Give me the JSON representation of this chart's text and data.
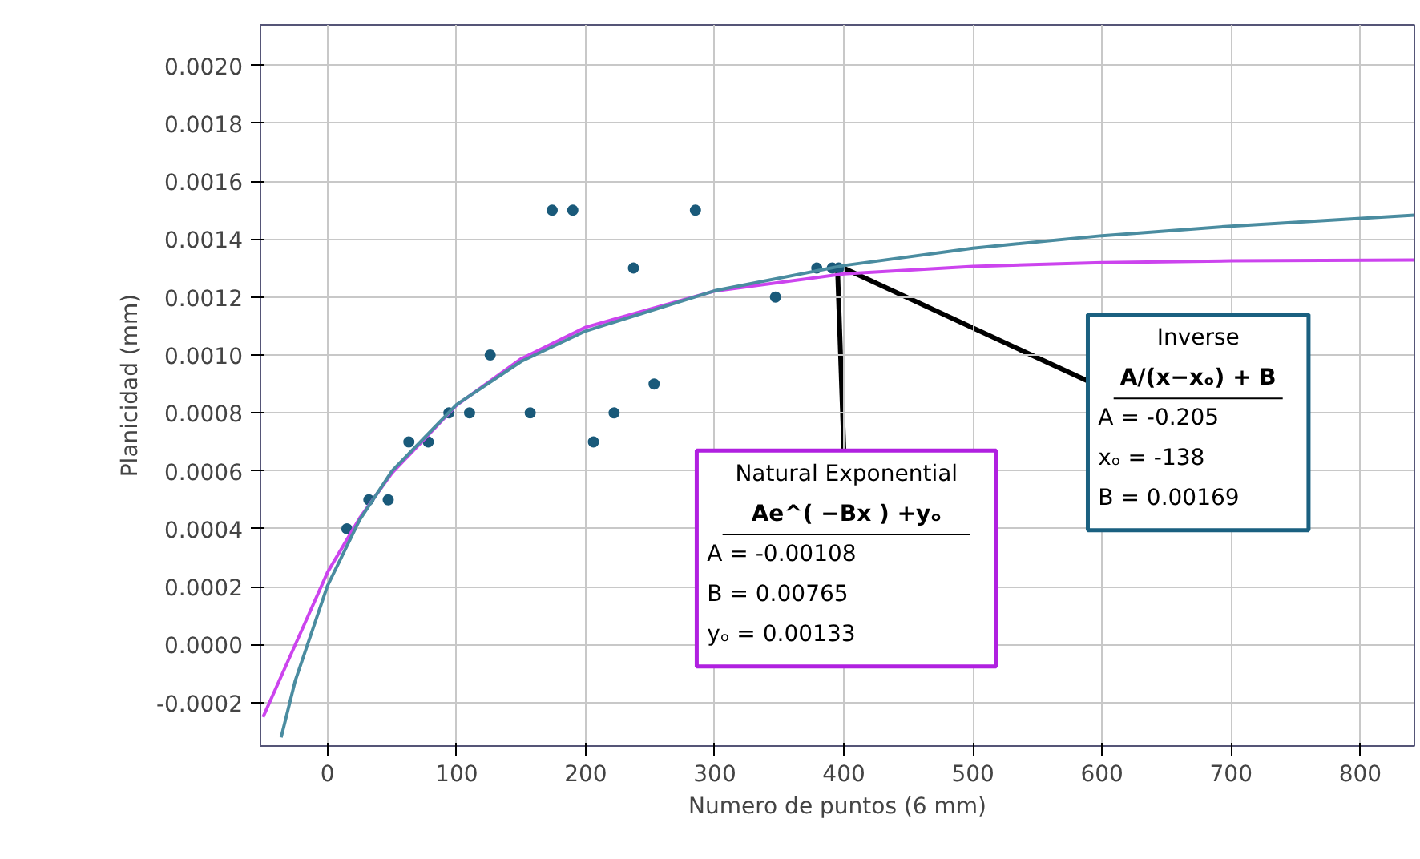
{
  "chart_data": {
    "type": "scatter",
    "xlabel": "Numero de puntos (6 mm)",
    "ylabel": "Planicidad (mm)",
    "xlim": [
      -52,
      842
    ],
    "ylim": [
      -0.00035,
      0.00214
    ],
    "xticks": [
      0,
      100,
      200,
      300,
      400,
      500,
      600,
      700,
      800
    ],
    "yticks": [
      {
        "value": -0.0002,
        "label": "-0.0002"
      },
      {
        "value": 0,
        "label": "0.0000"
      },
      {
        "value": 0.0002,
        "label": "0.0002"
      },
      {
        "value": 0.0004,
        "label": "0.0004"
      },
      {
        "value": 0.0006,
        "label": "0.0006"
      },
      {
        "value": 0.0008,
        "label": "0.0008"
      },
      {
        "value": 0.001,
        "label": "0.0010"
      },
      {
        "value": 0.0012,
        "label": "0.0012"
      },
      {
        "value": 0.0014,
        "label": "0.0014"
      },
      {
        "value": 0.0016,
        "label": "0.0016"
      },
      {
        "value": 0.0018,
        "label": "0.0018"
      },
      {
        "value": 0.002,
        "label": "0.0020"
      }
    ],
    "grid": true,
    "series": [
      {
        "marker": "circle",
        "color": "#1a5a7a",
        "x": [
          15,
          32,
          47,
          63,
          78,
          94,
          110,
          126,
          157,
          174,
          190,
          206,
          222,
          237,
          253,
          285,
          347,
          379,
          391,
          396
        ],
        "values": [
          0.0004,
          0.0005,
          0.0005,
          0.0007,
          0.0007,
          0.0008,
          0.0008,
          0.001,
          0.0008,
          0.0015,
          0.0015,
          0.0007,
          0.0008,
          0.0013,
          0.0009,
          0.0015,
          0.0012,
          0.0013,
          0.0013,
          0.0013
        ]
      },
      {
        "type": "line",
        "color": "#cc44ee",
        "line_style": "solid",
        "x": [
          -50,
          -25,
          0,
          25,
          50,
          100,
          150,
          200,
          300,
          400,
          500,
          600,
          700,
          842
        ],
        "values": [
          -0.00025,
          0.0,
          0.00025,
          0.000438,
          0.000593,
          0.000827,
          0.000987,
          0.001096,
          0.001221,
          0.00128,
          0.001306,
          0.001319,
          0.001325,
          0.001328
        ]
      },
      {
        "type": "line",
        "color": "#4a8ca0",
        "line_style": "solid",
        "x": [
          -36,
          -25,
          0,
          25,
          50,
          100,
          150,
          200,
          300,
          400,
          500,
          600,
          700,
          842
        ],
        "values": [
          -0.00032,
          -0.000124,
          0.000204,
          0.000432,
          0.0006,
          0.000829,
          0.000978,
          0.001083,
          0.001222,
          0.001309,
          0.001369,
          0.001412,
          0.001445,
          0.001483
        ]
      }
    ],
    "annotations": [
      {
        "text": "Natural Exponential\nAe^( −Bx ) +yₒ\nA  = -0.00108\nB  = 0.00765\nyₒ = 0.00133",
        "x": 395,
        "y": 0.00131
      },
      {
        "text": "Inverse\nA/(x−xₒ) + B\nA  = -0.205\nxₒ = -138\nB  = 0.00169",
        "x": 395,
        "y": 0.00131
      }
    ]
  }
}
